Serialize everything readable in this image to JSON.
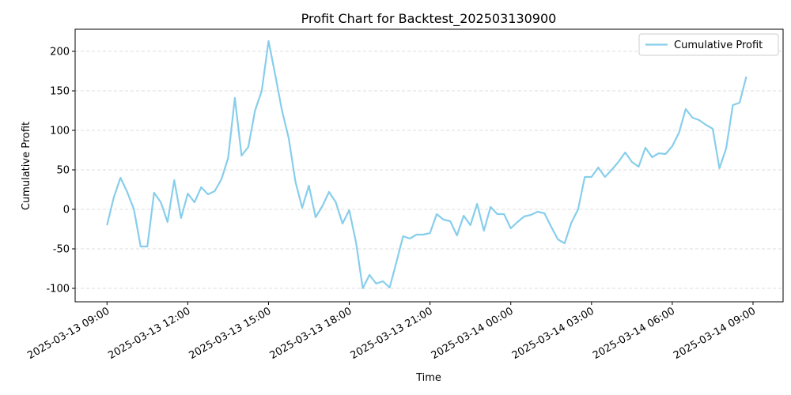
{
  "chart_data": {
    "type": "line",
    "title": "Profit Chart for Backtest_202503130900",
    "x_label": "Time",
    "y_label": "Cumulative Profit",
    "x": [
      "2025-03-13 09:00",
      "2025-03-13 09:15",
      "2025-03-13 09:30",
      "2025-03-13 09:45",
      "2025-03-13 10:00",
      "2025-03-13 10:15",
      "2025-03-13 10:30",
      "2025-03-13 10:45",
      "2025-03-13 11:00",
      "2025-03-13 11:15",
      "2025-03-13 11:30",
      "2025-03-13 11:45",
      "2025-03-13 12:00",
      "2025-03-13 12:15",
      "2025-03-13 12:30",
      "2025-03-13 12:45",
      "2025-03-13 13:00",
      "2025-03-13 13:15",
      "2025-03-13 13:30",
      "2025-03-13 13:45",
      "2025-03-13 14:00",
      "2025-03-13 14:15",
      "2025-03-13 14:30",
      "2025-03-13 14:45",
      "2025-03-13 15:00",
      "2025-03-13 15:15",
      "2025-03-13 15:30",
      "2025-03-13 15:45",
      "2025-03-13 16:00",
      "2025-03-13 16:15",
      "2025-03-13 16:30",
      "2025-03-13 16:45",
      "2025-03-13 17:00",
      "2025-03-13 17:15",
      "2025-03-13 17:30",
      "2025-03-13 17:45",
      "2025-03-13 18:00",
      "2025-03-13 18:15",
      "2025-03-13 18:30",
      "2025-03-13 18:45",
      "2025-03-13 19:00",
      "2025-03-13 19:15",
      "2025-03-13 19:30",
      "2025-03-13 19:45",
      "2025-03-13 20:00",
      "2025-03-13 20:15",
      "2025-03-13 20:30",
      "2025-03-13 20:45",
      "2025-03-13 21:00",
      "2025-03-13 21:15",
      "2025-03-13 21:30",
      "2025-03-13 21:45",
      "2025-03-13 22:00",
      "2025-03-13 22:15",
      "2025-03-13 22:30",
      "2025-03-13 22:45",
      "2025-03-13 23:00",
      "2025-03-13 23:15",
      "2025-03-13 23:30",
      "2025-03-13 23:45",
      "2025-03-14 00:00",
      "2025-03-14 00:15",
      "2025-03-14 00:30",
      "2025-03-14 00:45",
      "2025-03-14 01:00",
      "2025-03-14 01:15",
      "2025-03-14 01:30",
      "2025-03-14 01:45",
      "2025-03-14 02:00",
      "2025-03-14 02:15",
      "2025-03-14 02:30",
      "2025-03-14 02:45",
      "2025-03-14 03:00",
      "2025-03-14 03:15",
      "2025-03-14 03:30",
      "2025-03-14 03:45",
      "2025-03-14 04:00",
      "2025-03-14 04:15",
      "2025-03-14 04:30",
      "2025-03-14 04:45",
      "2025-03-14 05:00",
      "2025-03-14 05:15",
      "2025-03-14 05:30",
      "2025-03-14 05:45",
      "2025-03-14 06:00",
      "2025-03-14 06:15",
      "2025-03-14 06:30",
      "2025-03-14 06:45",
      "2025-03-14 07:00",
      "2025-03-14 07:15",
      "2025-03-14 07:30",
      "2025-03-14 07:45",
      "2025-03-14 08:00",
      "2025-03-14 08:15",
      "2025-03-14 08:30",
      "2025-03-14 08:45"
    ],
    "series": [
      {
        "name": "Cumulative Profit",
        "color": "#87ceeb",
        "values": [
          -20,
          15,
          40,
          22,
          0,
          -47,
          -47,
          21,
          9,
          -16,
          37,
          -11,
          20,
          9,
          28,
          19,
          23,
          38,
          65,
          141,
          68,
          79,
          125,
          150,
          213,
          170,
          125,
          90,
          35,
          2,
          30,
          -10,
          4,
          22,
          9,
          -18,
          -1,
          -42,
          -100,
          -83,
          -94,
          -91,
          -99,
          -67,
          -34,
          -37,
          -32,
          -32,
          -30,
          -6,
          -13,
          -15,
          -33,
          -8,
          -20,
          7,
          -27,
          3,
          -6,
          -6,
          -24,
          -16,
          -9,
          -7,
          -3,
          -5,
          -22,
          -38,
          -43,
          -17,
          0,
          41,
          41,
          53,
          41,
          50,
          60,
          72,
          60,
          54,
          78,
          66,
          71,
          70,
          80,
          97,
          127,
          116,
          113,
          107,
          102,
          52,
          77,
          132,
          135,
          168
        ]
      }
    ],
    "xlim": [
      "2025-03-13 07:49",
      "2025-03-14 10:07"
    ],
    "xticks": [
      "2025-03-13 09:00",
      "2025-03-13 12:00",
      "2025-03-13 15:00",
      "2025-03-13 18:00",
      "2025-03-13 21:00",
      "2025-03-14 00:00",
      "2025-03-14 03:00",
      "2025-03-14 06:00",
      "2025-03-14 09:00"
    ],
    "ylim": [
      -117,
      228
    ],
    "yticks": [
      -100,
      -50,
      0,
      50,
      100,
      150,
      200
    ],
    "grid": "y",
    "legend": "upper right"
  }
}
